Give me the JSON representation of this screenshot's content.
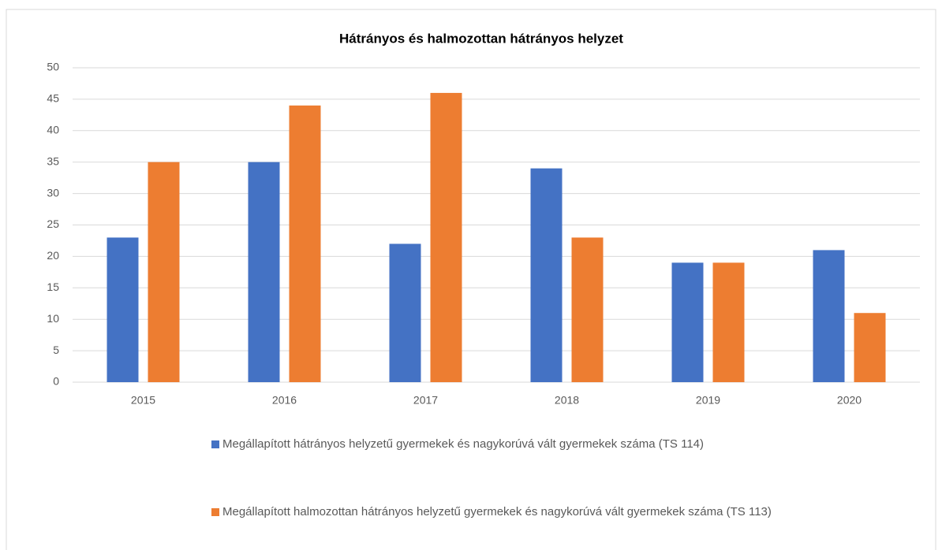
{
  "chart_data": {
    "type": "bar",
    "title": "Hátrányos és halmozottan hátrányos helyzet",
    "categories": [
      "2015",
      "2016",
      "2017",
      "2018",
      "2019",
      "2020"
    ],
    "series": [
      {
        "name": "Megállapított hátrányos helyzetű gyermekek és nagykorúvá vált gyermekek száma (TS 114)",
        "color": "#4472c4",
        "values": [
          23,
          35,
          22,
          34,
          19,
          21
        ]
      },
      {
        "name": "Megállapított halmozottan hátrányos helyzetű gyermekek és nagykorúvá vált gyermekek száma (TS 113)",
        "color": "#ed7d31",
        "values": [
          35,
          44,
          46,
          23,
          19,
          11
        ]
      }
    ],
    "ylim": [
      0,
      50
    ],
    "yticks": [
      0,
      5,
      10,
      15,
      20,
      25,
      30,
      35,
      40,
      45,
      50
    ],
    "grid": true,
    "legend": "bottom"
  }
}
